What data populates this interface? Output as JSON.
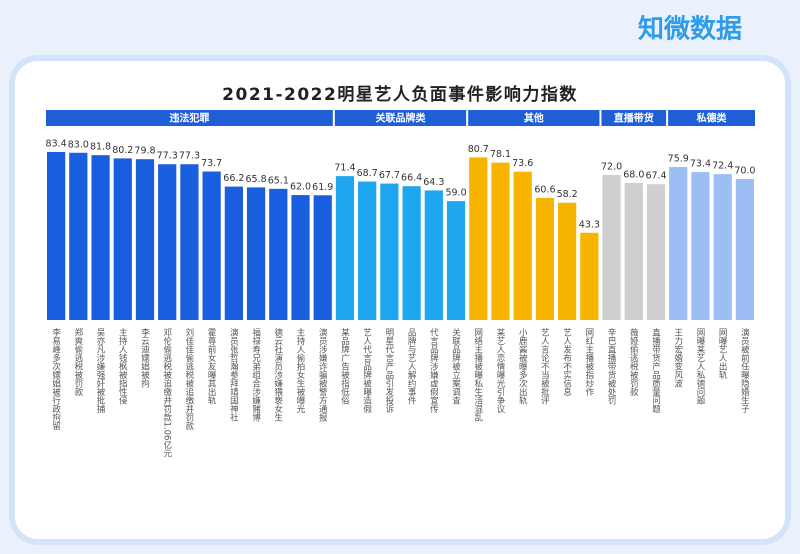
{
  "chart_data": {
    "type": "bar",
    "logo": "知微数据",
    "title": "2021-2022明星艺人负面事件影响力指数",
    "groups": [
      {
        "name": "违法犯罪",
        "color": "#1a5ee0",
        "categories": [
          "李易峰多次嫖娼被行政拘留",
          "郑爽偷逃税被罚款",
          "吴亦凡涉嫌强奸被批捕",
          "主持人钱枫被指性侵",
          "李云迪嫖娼被拘",
          "邓伦偷逃税被追缴并罚款1.06亿元",
          "刘佳佳偷逃税被追缴并罚款",
          "霍尊前女友曝其出轨",
          "演员张哲瀚参拜靖国神社",
          "福禄寿兄弟组合涉嫌赌博",
          "德云社演员涉嫌猥亵女生",
          "主持人偷拍女生被曝光",
          "演员涉嫌诈骗被警方通报"
        ],
        "values": [
          83.4,
          83.0,
          81.8,
          80.2,
          79.8,
          77.3,
          77.3,
          73.7,
          66.2,
          65.8,
          65.1,
          62.0,
          61.9
        ],
        "value_labels": [
          "83.4",
          "83.0",
          "81.8",
          "80.2",
          "79.8",
          "77.3",
          "77.3",
          "73.7",
          "66.2",
          "65.8",
          "65.1",
          "62.0",
          "61.9"
        ]
      },
      {
        "name": "关联品牌类",
        "color": "#1ea6ee",
        "categories": [
          "某品牌广告被指低俗",
          "艺人代言品牌被曝造假",
          "明星代言产品引发投诉",
          "品牌与艺人解约事件",
          "代言品牌涉嫌虚假宣传",
          "关联品牌被立案调查"
        ],
        "values": [
          71.4,
          68.7,
          67.7,
          66.4,
          64.3,
          59.0
        ],
        "value_labels": [
          "71.4",
          "68.7",
          "67.7",
          "66.4",
          "64.3",
          "59.0"
        ]
      },
      {
        "name": "其他",
        "color": "#f7b500",
        "categories": [
          "网络主播被曝私生活混乱",
          "某艺人恋情曝光引争议",
          "小鹿酱被曝多次出轨",
          "艺人言论不当被批评",
          "艺人发布不实信息",
          "网红主播被指炒作"
        ],
        "values": [
          80.7,
          78.1,
          73.6,
          60.6,
          58.2,
          43.3
        ],
        "value_labels": [
          "80.7",
          "78.1",
          "73.6",
          "60.6",
          "58.2",
          "43.3"
        ]
      },
      {
        "name": "直播带货",
        "color": "#cfcfcf",
        "categories": [
          "辛巴直播带货被处罚",
          "薇娅偷逃税被罚款",
          "直播带货产品质量问题"
        ],
        "values": [
          72.0,
          68.0,
          67.4
        ],
        "value_labels": [
          "72.0",
          "68.0",
          "67.4"
        ]
      },
      {
        "name": "私德类",
        "color": "#9dbdf5",
        "categories": [
          "王力宏婚变风波",
          "网曝某艺人私德问题",
          "网曝艺人出轨",
          "演员被前任曝隐婚生子"
        ],
        "values": [
          75.9,
          73.4,
          72.4,
          70.0
        ],
        "value_labels": [
          "75.9",
          "73.4",
          "72.4",
          "70.0"
        ]
      }
    ]
  }
}
